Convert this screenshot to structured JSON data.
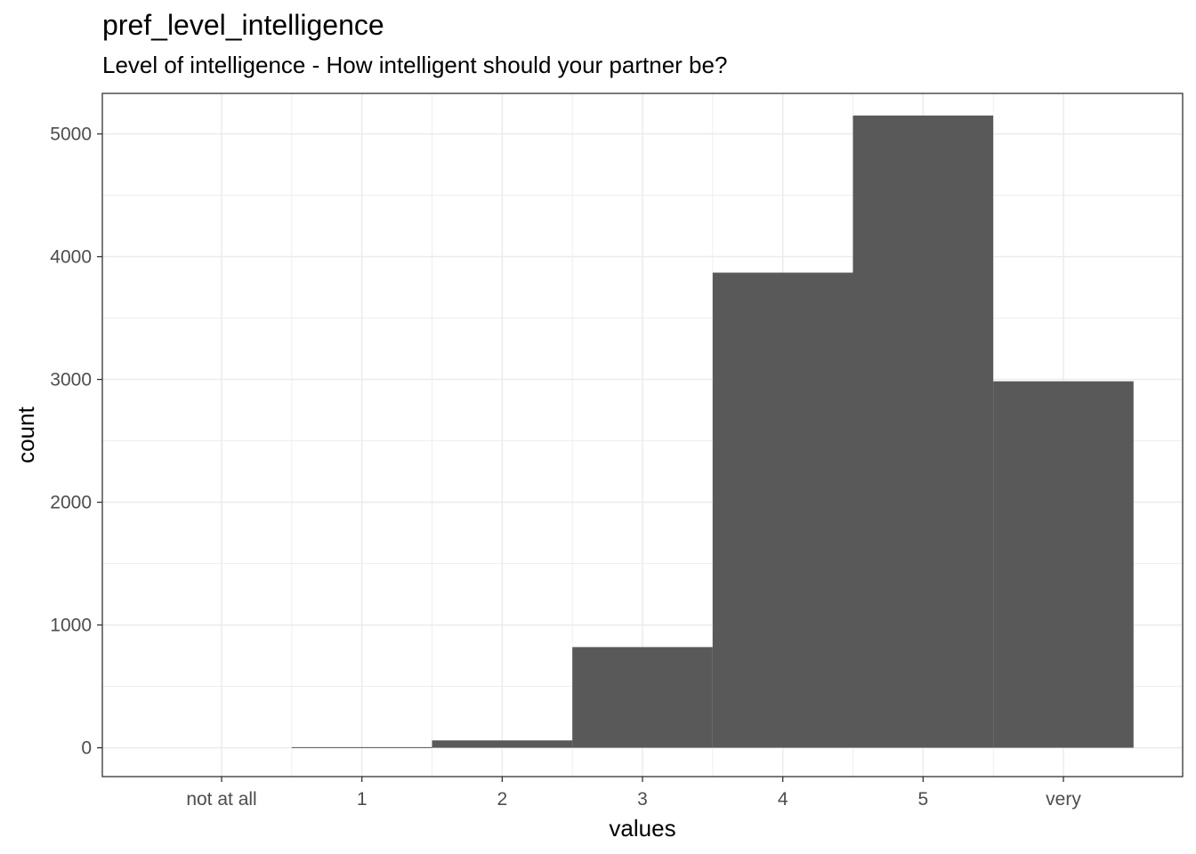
{
  "chart_data": {
    "type": "bar",
    "title": "pref_level_intelligence",
    "subtitle": "Level of intelligence - How intelligent should your partner be?",
    "xlabel": "values",
    "ylabel": "count",
    "categories": [
      "not at all",
      "1",
      "2",
      "3",
      "4",
      "5",
      "very"
    ],
    "values": [
      0,
      5,
      60,
      820,
      3870,
      5150,
      2985
    ],
    "ylim": [
      -235,
      5330
    ],
    "y_ticks": [
      0,
      1000,
      2000,
      3000,
      4000,
      5000
    ],
    "grid": true,
    "bar_color": "#595959",
    "grid_color": "#ebebeb",
    "panel_border_color": "#333333"
  }
}
